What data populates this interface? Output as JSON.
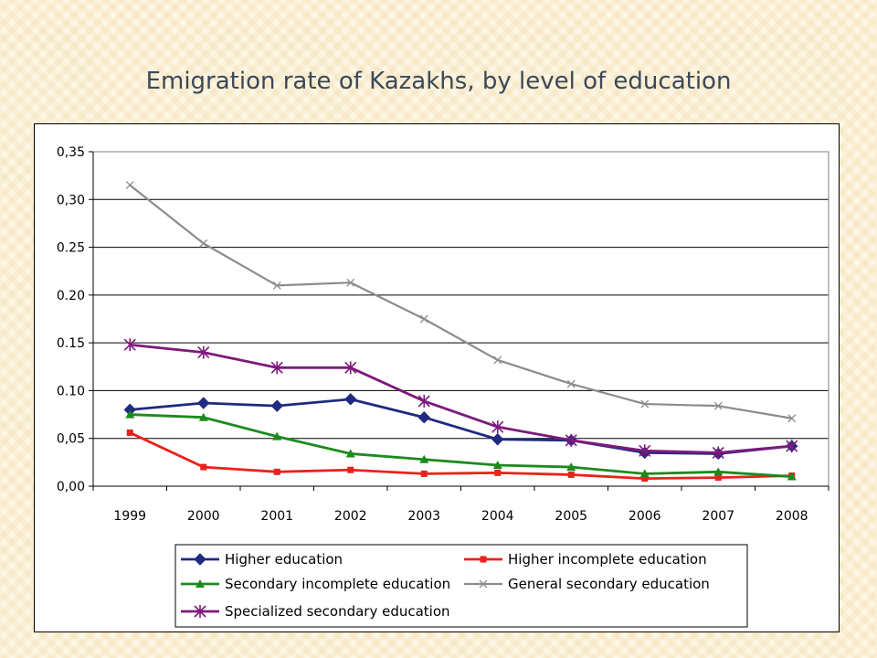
{
  "page": {
    "title": "Emigration rate of Kazakhs, by level of education"
  },
  "chart_data": {
    "type": "line",
    "title": "Emigration rate of Kazakhs, by level of education",
    "xlabel": "",
    "ylabel": "",
    "categories": [
      "1999",
      "2000",
      "2001",
      "2002",
      "2003",
      "2004",
      "2005",
      "2006",
      "2007",
      "2008"
    ],
    "ylim": [
      0,
      0.35
    ],
    "ytick_labels": [
      "0,00",
      "0,05",
      "0.10",
      "0.15",
      "0.20",
      "0.25",
      "0,30",
      "0,35"
    ],
    "grid": true,
    "legend_position": "bottom",
    "series": [
      {
        "name": "Higher education",
        "color": "#1f2a80",
        "marker": "diamond",
        "values": [
          0.08,
          0.087,
          0.084,
          0.091,
          0.072,
          0.049,
          0.048,
          0.035,
          0.034,
          0.042
        ]
      },
      {
        "name": "Higher incomplete education",
        "color": "#e8231c",
        "marker": "square",
        "values": [
          0.056,
          0.02,
          0.015,
          0.017,
          0.013,
          0.014,
          0.012,
          0.008,
          0.009,
          0.011
        ]
      },
      {
        "name": "Secondary incomplete education",
        "color": "#1d8a1d",
        "marker": "triangle",
        "values": [
          0.075,
          0.072,
          0.052,
          0.034,
          0.028,
          0.022,
          0.02,
          0.013,
          0.015,
          0.01
        ]
      },
      {
        "name": "General secondary education",
        "color": "#8c8c8c",
        "marker": "x",
        "values": [
          0.315,
          0.254,
          0.21,
          0.213,
          0.175,
          0.132,
          0.107,
          0.086,
          0.084,
          0.071
        ]
      },
      {
        "name": "Specialized secondary education",
        "color": "#7d1a7d",
        "marker": "star",
        "values": [
          0.148,
          0.14,
          0.124,
          0.124,
          0.089,
          0.062,
          0.048,
          0.037,
          0.035,
          0.042
        ]
      }
    ]
  }
}
